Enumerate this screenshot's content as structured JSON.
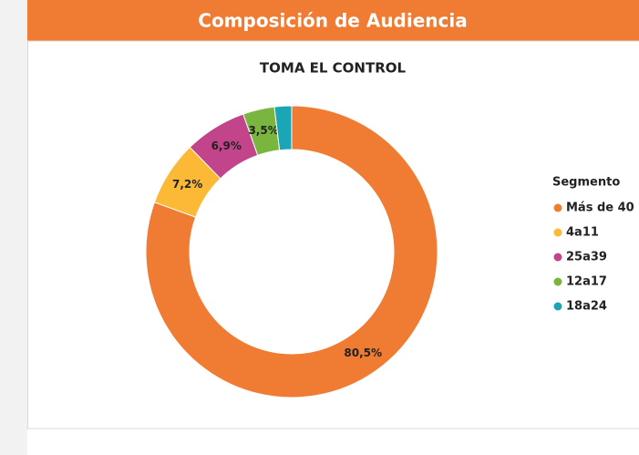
{
  "header": {
    "title": "Composición de Audiencia"
  },
  "chart_data": {
    "type": "donut",
    "title": "TOMA EL CONTROL",
    "legend_title": "Segmento",
    "legend": "right",
    "categories": [
      "Más de 40",
      "4a11",
      "25a39",
      "12a17",
      "18a24"
    ],
    "values": [
      80.5,
      7.2,
      6.9,
      3.5,
      1.9
    ],
    "value_labels": [
      "80,5%",
      "7,2%",
      "6,9%",
      "3,5%",
      null
    ],
    "colors": [
      "#f07b32",
      "#fbb935",
      "#c2448a",
      "#7ab540",
      "#1aa6b7"
    ]
  }
}
